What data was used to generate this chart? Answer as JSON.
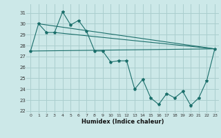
{
  "xlabel": "Humidex (Indice chaleur)",
  "background_color": "#cce8e8",
  "grid_color": "#aacece",
  "line_color": "#1a6e6a",
  "xlim": [
    -0.5,
    23.5
  ],
  "ylim": [
    21.8,
    31.8
  ],
  "yticks": [
    22,
    23,
    24,
    25,
    26,
    27,
    28,
    29,
    30,
    31
  ],
  "xticks": [
    0,
    1,
    2,
    3,
    4,
    5,
    6,
    7,
    8,
    9,
    10,
    11,
    12,
    13,
    14,
    15,
    16,
    17,
    18,
    19,
    20,
    21,
    22,
    23
  ],
  "series": {
    "x": [
      0,
      1,
      2,
      3,
      4,
      5,
      6,
      7,
      8,
      9,
      10,
      11,
      12,
      13,
      14,
      15,
      16,
      17,
      18,
      19,
      20,
      21,
      22,
      23
    ],
    "y": [
      27.5,
      30.0,
      29.2,
      29.2,
      31.1,
      29.9,
      30.3,
      29.3,
      27.5,
      27.5,
      26.5,
      26.6,
      26.6,
      24.0,
      24.9,
      23.2,
      22.6,
      23.6,
      23.2,
      23.8,
      22.5,
      23.2,
      24.8,
      27.7
    ]
  },
  "trend_lines": [
    {
      "x0": 0,
      "y0": 27.5,
      "x1": 23,
      "y1": 27.7
    },
    {
      "x0": 1,
      "y0": 30.0,
      "x1": 23,
      "y1": 27.7
    },
    {
      "x0": 3,
      "y0": 29.2,
      "x1": 23,
      "y1": 27.7
    }
  ]
}
